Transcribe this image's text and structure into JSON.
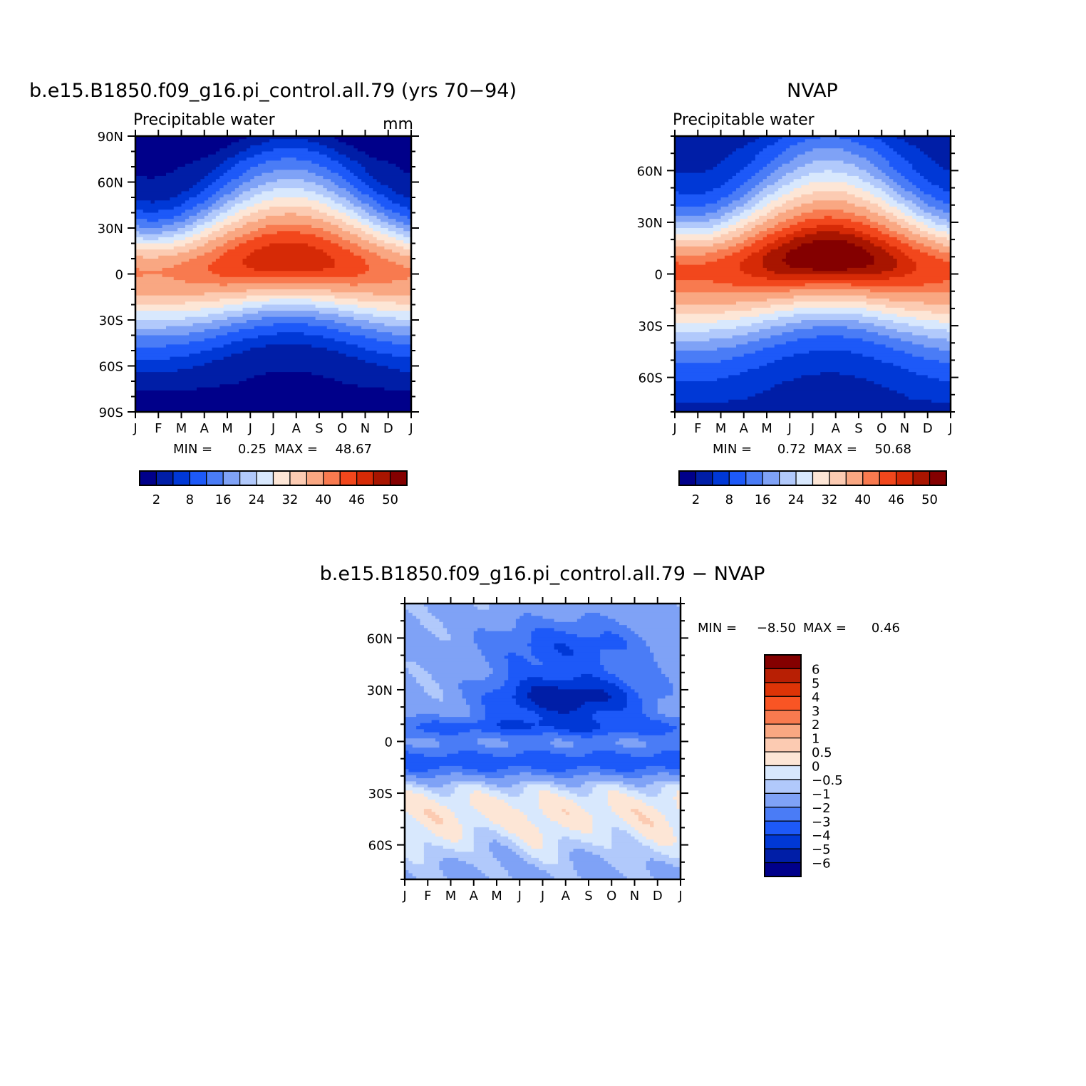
{
  "chart_data": [
    {
      "type": "heatmap",
      "title": "b.e15.B1850.f09_g16.pi_control.all.79 (yrs 70-94)",
      "subtitle_left": "Precipitable water",
      "subtitle_right": "mm",
      "x_ticks": [
        "J",
        "F",
        "M",
        "A",
        "M",
        "J",
        "J",
        "A",
        "S",
        "O",
        "N",
        "D",
        "J"
      ],
      "y_ticks": [
        "90N",
        "60N",
        "30N",
        "0",
        "30S",
        "60S",
        "90S"
      ],
      "ylim": [
        -90,
        90
      ],
      "stats": {
        "min_label": "MIN =",
        "min": "0.25",
        "max_label": "MAX =",
        "max": "48.67"
      },
      "colorbar": {
        "levels": [
          "2",
          "8",
          "16",
          "24",
          "32",
          "40",
          "46",
          "50"
        ]
      }
    },
    {
      "type": "heatmap",
      "title": "NVAP",
      "subtitle_left": "Precipitable water",
      "x_ticks": [
        "J",
        "F",
        "M",
        "A",
        "M",
        "J",
        "J",
        "A",
        "S",
        "O",
        "N",
        "D",
        "J"
      ],
      "y_ticks": [
        "60N",
        "30N",
        "0",
        "30S",
        "60S"
      ],
      "ylim": [
        -80,
        80
      ],
      "stats": {
        "min_label": "MIN =",
        "min": "0.72",
        "max_label": "MAX =",
        "max": "50.68"
      },
      "colorbar": {
        "levels": [
          "2",
          "8",
          "16",
          "24",
          "32",
          "40",
          "46",
          "50"
        ]
      }
    },
    {
      "type": "heatmap",
      "title": "b.e15.B1850.f09_g16.pi_control.all.79 - NVAP",
      "x_ticks": [
        "J",
        "F",
        "M",
        "A",
        "M",
        "J",
        "J",
        "A",
        "S",
        "O",
        "N",
        "D",
        "J"
      ],
      "y_ticks": [
        "60N",
        "30N",
        "0",
        "30S",
        "60S"
      ],
      "ylim": [
        -80,
        80
      ],
      "stats": {
        "min_label": "MIN =",
        "min": "-8.50",
        "max_label": "MAX =",
        "max": "0.46"
      },
      "colorbar": {
        "levels": [
          "6",
          "5",
          "4",
          "3",
          "2",
          "1",
          "0.5",
          "0",
          "-0.5",
          "-1",
          "-2",
          "-3",
          "-4",
          "-5",
          "-6"
        ]
      }
    }
  ],
  "palette_abs": [
    "#00008a",
    "#001ea7",
    "#0038d6",
    "#1d59f8",
    "#4a7cf6",
    "#7fa2f6",
    "#b1c9fb",
    "#d8e8fd",
    "#fde6d6",
    "#fccbb2",
    "#f9a782",
    "#f87a4f",
    "#f2471c",
    "#d62a06",
    "#a81500",
    "#840000"
  ],
  "palette_diff": [
    "#840000",
    "#b81f04",
    "#dd3407",
    "#f95524",
    "#f87a4f",
    "#f9a782",
    "#fccbb2",
    "#fde6d6",
    "#d8e8fd",
    "#b1c9fb",
    "#7fa2f6",
    "#4a7cf6",
    "#1d59f8",
    "#0038d6",
    "#001ea7",
    "#00008a"
  ]
}
